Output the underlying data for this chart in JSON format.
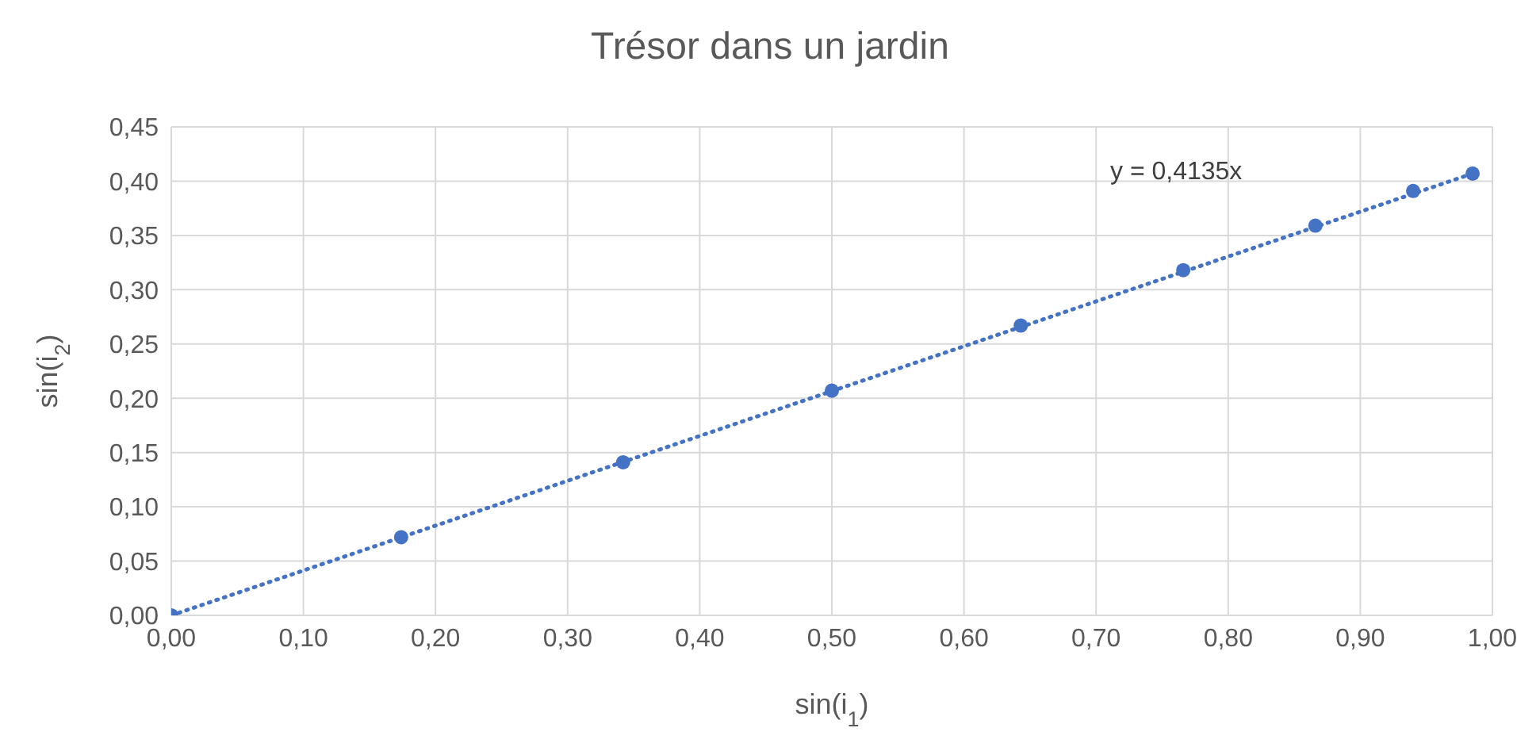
{
  "chart_data": {
    "type": "scatter",
    "title": "Trésor dans un jardin",
    "xlabel": "sin(i$_{1}$)",
    "ylabel": "sin(i$_{2}$)",
    "annotations": [
      "y = 0,4135x"
    ],
    "grid": true,
    "legend": false,
    "marker": "circle",
    "xlim": [
      0,
      1
    ],
    "ylim": [
      0,
      0.45
    ],
    "xticks": [
      {
        "value": 0,
        "label": "0,00"
      },
      {
        "value": 0.1,
        "label": "0,10"
      },
      {
        "value": 0.2,
        "label": "0,20"
      },
      {
        "value": 0.3,
        "label": "0,30"
      },
      {
        "value": 0.4,
        "label": "0,40"
      },
      {
        "value": 0.5,
        "label": "0,50"
      },
      {
        "value": 0.6,
        "label": "0,60"
      },
      {
        "value": 0.7,
        "label": "0,70"
      },
      {
        "value": 0.8,
        "label": "0,80"
      },
      {
        "value": 0.9,
        "label": "0,90"
      },
      {
        "value": 1,
        "label": "1,00"
      }
    ],
    "yticks": [
      {
        "value": 0,
        "label": "0,00"
      },
      {
        "value": 0.05,
        "label": "0,05"
      },
      {
        "value": 0.1,
        "label": "0,10"
      },
      {
        "value": 0.15,
        "label": "0,15"
      },
      {
        "value": 0.2,
        "label": "0,20"
      },
      {
        "value": 0.25,
        "label": "0,25"
      },
      {
        "value": 0.3,
        "label": "0,30"
      },
      {
        "value": 0.35,
        "label": "0,35"
      },
      {
        "value": 0.4,
        "label": "0,40"
      },
      {
        "value": 0.45,
        "label": "0,45"
      }
    ],
    "series": [
      {
        "type": "scatter",
        "color": "#4472c4",
        "x": [
          0,
          0.174,
          0.342,
          0.5,
          0.643,
          0.766,
          0.866,
          0.94,
          0.985
        ],
        "values": [
          0,
          0.072,
          0.141,
          0.207,
          0.267,
          0.318,
          0.359,
          0.391,
          0.407
        ]
      },
      {
        "type": "line",
        "color": "#4472c4",
        "line_style": "dotted",
        "marker": "none",
        "x": [
          0,
          0.985
        ],
        "values": [
          0,
          0.407
        ]
      }
    ]
  }
}
